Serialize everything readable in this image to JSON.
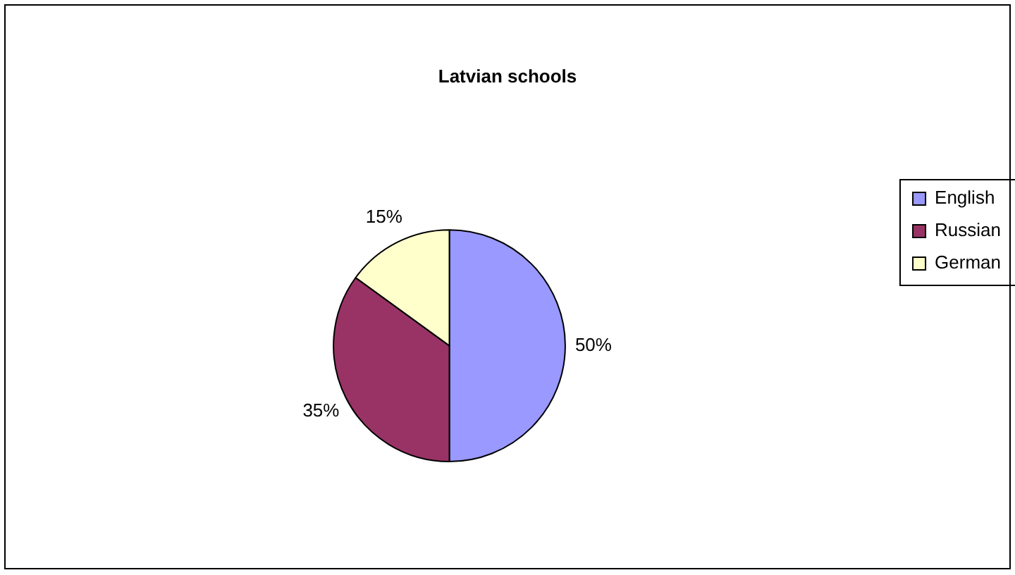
{
  "chart_data": {
    "type": "pie",
    "title": "Latvian schools",
    "categories": [
      "English",
      "Russian",
      "German"
    ],
    "values": [
      50,
      35,
      15
    ],
    "colors": [
      "#9999ff",
      "#993366",
      "#ffffcc"
    ],
    "value_labels": [
      "50%",
      "35%",
      "15%"
    ],
    "legend": "right"
  }
}
